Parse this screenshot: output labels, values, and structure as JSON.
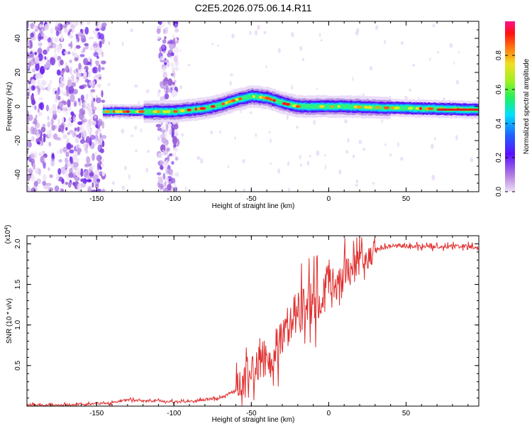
{
  "chart_data": [
    {
      "type": "heatmap",
      "title": "C2E5.2026.075.06.14.R11",
      "xlabel": "Height of straight line (km)",
      "ylabel": "Frequency (Hz)",
      "xlim": [
        -195,
        97
      ],
      "ylim": [
        -50,
        50
      ],
      "xticks": [
        "-150",
        "-100",
        "-50",
        "0",
        "50"
      ],
      "yticks": [
        "-40",
        "-20",
        "0",
        "20",
        "40"
      ],
      "colorbar": {
        "label": "Normalized spectral amplitude",
        "range": [
          0,
          1
        ],
        "ticks": [
          "0.0",
          "0.2",
          "0.4",
          "0.6",
          "0.8"
        ],
        "colormap": "rainbow (lavender → violet → blue → cyan → green → yellow → red → magenta)"
      },
      "ridge": {
        "description": "center frequency of high-amplitude band vs height",
        "x": [
          -145,
          -130,
          -115,
          -100,
          -90,
          -80,
          -70,
          -60,
          -50,
          -40,
          -30,
          -20,
          -10,
          0,
          10,
          25,
          50,
          75,
          95
        ],
        "y": [
          -3,
          -3,
          -3,
          -3,
          -2,
          -1,
          1,
          4,
          6,
          5,
          2,
          0,
          0,
          0,
          0,
          -0.5,
          -1,
          -1.5,
          -2
        ]
      },
      "noise_regions": [
        [
          -195,
          -145
        ],
        [
          -110,
          -98
        ]
      ]
    },
    {
      "type": "line",
      "xlabel": "Height of straight line (km)",
      "ylabel": "SNR (10 * v/v)",
      "y_scale_label": "(x10^4)",
      "xlim": [
        -195,
        97
      ],
      "ylim": [
        0,
        2.1
      ],
      "xticks": [
        "-150",
        "-100",
        "-50",
        "0",
        "50"
      ],
      "yticks": [
        "0.5",
        "1.0",
        "1.5",
        "2.0"
      ],
      "color": "#e03030",
      "series": [
        {
          "x": [
            -195,
            -180,
            -160,
            -140,
            -130,
            -120,
            -110,
            -100,
            -90,
            -80,
            -70,
            -60,
            -55,
            -50,
            -45,
            -40,
            -35,
            -30,
            -25,
            -20,
            -15,
            -10,
            -5,
            0,
            5,
            10,
            15,
            20,
            25,
            30,
            35,
            40,
            45,
            50,
            60,
            70,
            80,
            90,
            97
          ],
          "y": [
            0.01,
            0.01,
            0.02,
            0.04,
            0.08,
            0.06,
            0.07,
            0.05,
            0.06,
            0.08,
            0.1,
            0.2,
            0.3,
            0.45,
            0.55,
            0.6,
            0.7,
            0.85,
            1.0,
            1.2,
            1.15,
            1.3,
            1.35,
            1.5,
            1.4,
            1.6,
            1.7,
            1.8,
            1.85,
            1.9,
            1.95,
            1.97,
            1.98,
            1.97,
            1.97,
            1.96,
            1.97,
            1.97,
            1.95
          ]
        }
      ]
    }
  ]
}
